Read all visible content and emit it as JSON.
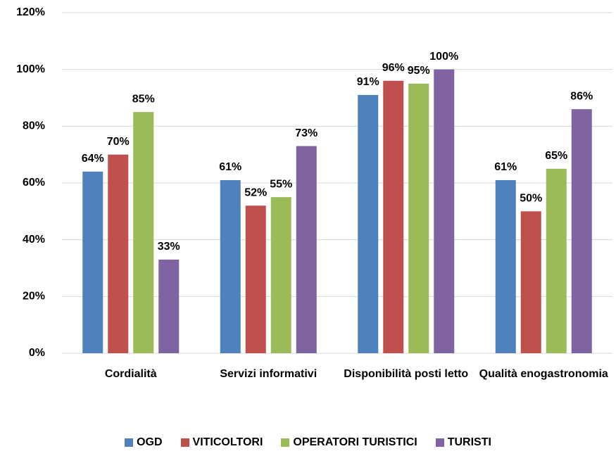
{
  "chart_data": {
    "type": "bar",
    "categories": [
      "Cordialità",
      "Servizi informativi",
      "Disponibilità posti letto",
      "Qualità enogastronomia"
    ],
    "series": [
      {
        "name": "OGD",
        "color": "#4f81bd",
        "values": [
          64,
          61,
          91,
          61
        ],
        "value_labels": [
          "64%",
          "61%",
          "91%",
          "61%"
        ]
      },
      {
        "name": "VITICOLTORI",
        "color": "#c0504d",
        "values": [
          70,
          52,
          96,
          50
        ],
        "value_labels": [
          "70%",
          "52%",
          "96%",
          "50%"
        ]
      },
      {
        "name": "OPERATORI TURISTICI",
        "color": "#9bbb59",
        "values": [
          85,
          55,
          95,
          65
        ],
        "value_labels": [
          "85%",
          "55%",
          "95%",
          "65%"
        ]
      },
      {
        "name": "TURISTI",
        "color": "#8064a2",
        "values": [
          33,
          73,
          100,
          86
        ],
        "value_labels": [
          "33%",
          "73%",
          "100%",
          "86%"
        ]
      }
    ],
    "ylim": [
      0,
      120
    ],
    "yticks": [
      {
        "value": 0,
        "label": "0%"
      },
      {
        "value": 20,
        "label": "20%"
      },
      {
        "value": 40,
        "label": "40%"
      },
      {
        "value": 60,
        "label": "60%"
      },
      {
        "value": 80,
        "label": "80%"
      },
      {
        "value": 100,
        "label": "100%"
      },
      {
        "value": 120,
        "label": "120%"
      }
    ],
    "grid": true,
    "legend": "bottom"
  }
}
